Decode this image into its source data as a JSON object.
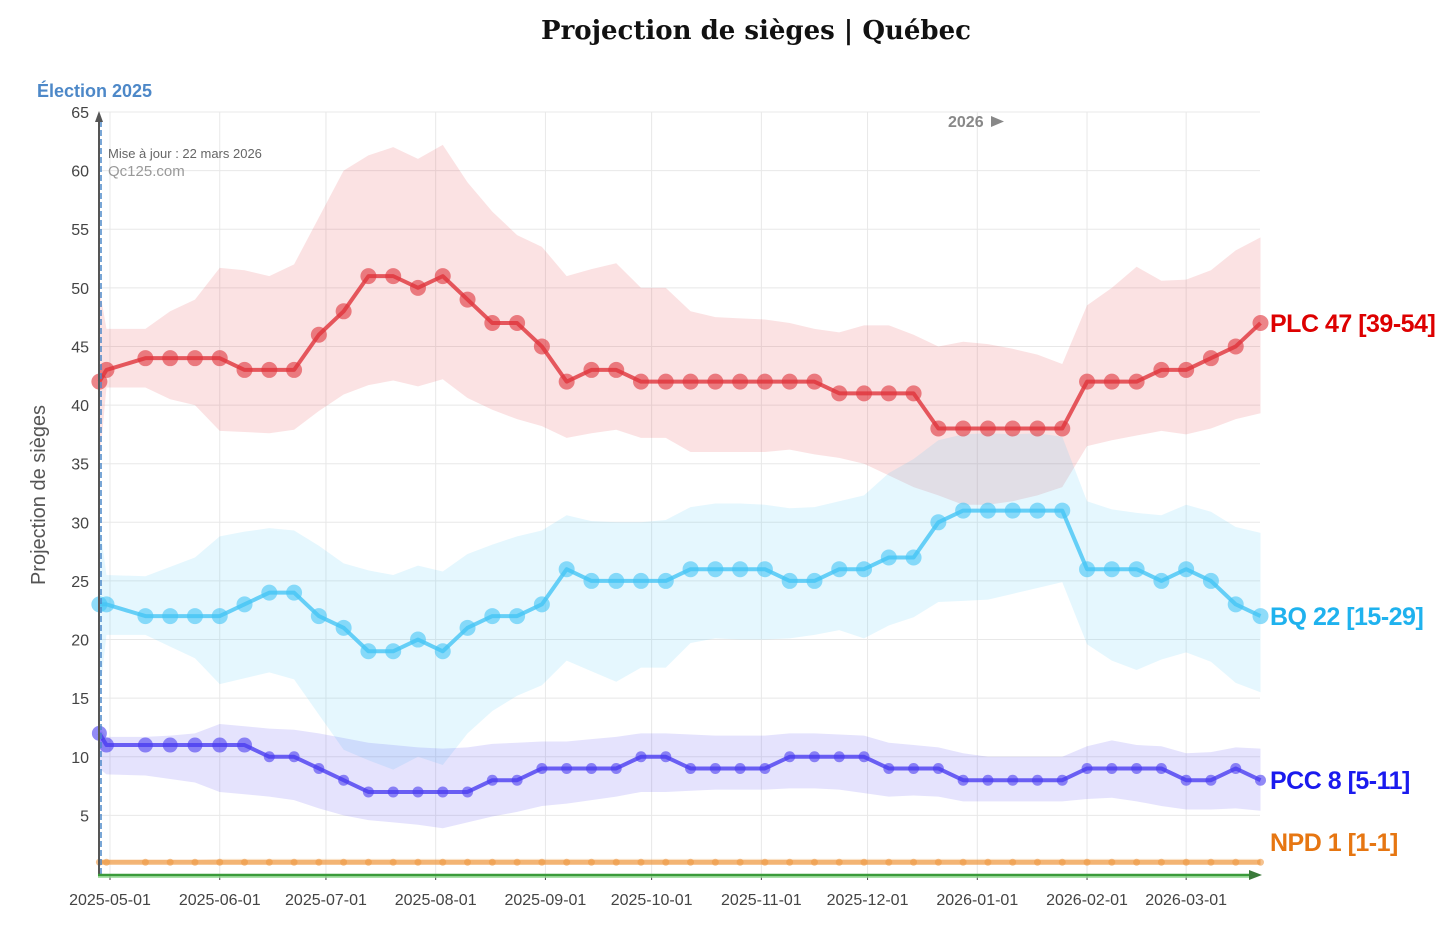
{
  "chart_data": {
    "type": "line",
    "title": "Projection de sièges | Québec",
    "ylabel": "Projection de sièges",
    "xlabel": "",
    "ylim": [
      0,
      65
    ],
    "yticks": [
      5,
      10,
      15,
      20,
      25,
      30,
      35,
      40,
      45,
      50,
      55,
      60,
      65
    ],
    "grid": true,
    "election_label": "Élection 2025",
    "updated_label": "Mise à jour : 22 mars 2026",
    "source_label": "Qc125.com",
    "year_marker": "2026",
    "xtick_labels": [
      "2025-05-01",
      "2025-06-01",
      "2025-07-01",
      "2025-08-01",
      "2025-09-01",
      "2025-10-01",
      "2025-11-01",
      "2025-12-01",
      "2026-01-01",
      "2026-02-01",
      "2026-03-01"
    ],
    "x": [
      "2025-04-28",
      "2025-04-30",
      "2025-05-11",
      "2025-05-18",
      "2025-05-25",
      "2025-06-01",
      "2025-06-08",
      "2025-06-15",
      "2025-06-22",
      "2025-06-29",
      "2025-07-06",
      "2025-07-13",
      "2025-07-20",
      "2025-07-27",
      "2025-08-03",
      "2025-08-10",
      "2025-08-17",
      "2025-08-24",
      "2025-08-31",
      "2025-09-07",
      "2025-09-14",
      "2025-09-21",
      "2025-09-28",
      "2025-10-05",
      "2025-10-12",
      "2025-10-19",
      "2025-10-26",
      "2025-11-02",
      "2025-11-09",
      "2025-11-16",
      "2025-11-23",
      "2025-11-30",
      "2025-12-07",
      "2025-12-14",
      "2025-12-21",
      "2025-12-28",
      "2026-01-04",
      "2026-01-11",
      "2026-01-18",
      "2026-01-25",
      "2026-02-01",
      "2026-02-08",
      "2026-02-15",
      "2026-02-22",
      "2026-03-01",
      "2026-03-08",
      "2026-03-15",
      "2026-03-22"
    ],
    "series": [
      {
        "name": "PLC",
        "label": "PLC 47 [39-54]",
        "color": "#e0333a",
        "label_color": "#dd0000",
        "values": [
          42,
          43,
          44,
          44,
          44,
          44,
          43,
          43,
          43,
          46,
          48,
          51,
          51,
          50,
          51,
          49,
          47,
          47,
          45,
          42,
          43,
          43,
          42,
          42,
          42,
          42,
          42,
          42,
          42,
          42,
          41,
          41,
          41,
          41,
          38,
          38,
          38,
          38,
          38,
          38,
          42,
          42,
          42,
          43,
          43,
          44,
          45,
          47
        ],
        "upper": [
          50,
          46.5,
          46.5,
          48,
          49,
          51.7,
          51.5,
          51,
          52,
          56,
          60,
          61.3,
          62,
          61,
          62.2,
          59,
          56.5,
          54.5,
          53.5,
          51,
          51.6,
          52.1,
          50,
          50,
          48,
          47.5,
          47.4,
          47.3,
          47,
          46.5,
          46.2,
          46.8,
          46.8,
          46,
          45,
          45.4,
          45.2,
          44.8,
          44.3,
          43.5,
          48.5,
          50,
          51.8,
          50.6,
          50.7,
          51.5,
          53.2,
          54.3
        ],
        "lower": [
          35,
          41.5,
          41.5,
          40.5,
          40,
          37.8,
          37.7,
          37.6,
          37.9,
          39.5,
          40.9,
          41.7,
          42.1,
          41.6,
          42.2,
          40.6,
          39.6,
          38.8,
          38.2,
          37.2,
          37.6,
          37.9,
          37.2,
          37.2,
          36,
          36,
          36,
          36,
          36.2,
          35.8,
          35.5,
          35,
          34,
          33,
          32.3,
          31.5,
          31.5,
          31.8,
          32.3,
          33,
          36.5,
          37,
          37.4,
          37.8,
          37.5,
          38,
          38.8,
          39.3
        ]
      },
      {
        "name": "BQ",
        "label": "BQ 22 [15-29]",
        "color": "#45c4f5",
        "label_color": "#1fb2ee",
        "values": [
          23,
          23,
          22,
          22,
          22,
          22,
          23,
          24,
          24,
          22,
          21,
          19,
          19,
          20,
          19,
          21,
          22,
          22,
          23,
          26,
          25,
          25,
          25,
          25,
          26,
          26,
          26,
          26,
          25,
          25,
          26,
          26,
          27,
          27,
          30,
          31,
          31,
          31,
          31,
          31,
          26,
          26,
          26,
          25,
          26,
          25,
          23,
          22
        ],
        "upper": [
          30,
          25.5,
          25.4,
          26.2,
          27,
          28.8,
          29.2,
          29.5,
          29.3,
          28,
          26.5,
          25.9,
          25.5,
          26.3,
          25.8,
          27.3,
          28.1,
          28.8,
          29.3,
          30.6,
          30.1,
          30,
          30,
          30.2,
          31.3,
          31.6,
          31.6,
          31.5,
          31.2,
          31.3,
          31.8,
          32.3,
          34.2,
          35.4,
          37,
          37.5,
          37.6,
          37.5,
          37.6,
          37.3,
          31.8,
          31.1,
          30.8,
          30.6,
          31.5,
          30.9,
          29.6,
          29.1
        ],
        "lower": [
          15,
          20.4,
          20.4,
          19.4,
          18.4,
          16.2,
          16.7,
          17.2,
          16.6,
          13.6,
          10.6,
          9.7,
          8.9,
          10,
          9.3,
          12,
          13.9,
          15.2,
          16.1,
          18.2,
          17.3,
          16.4,
          17.6,
          17.6,
          19.7,
          20.1,
          20,
          20,
          20.1,
          20.4,
          20.8,
          20.1,
          21.2,
          21.9,
          23.2,
          23.3,
          23.4,
          23.9,
          24.4,
          24.9,
          19.6,
          18.2,
          17.4,
          18.3,
          18.9,
          18.1,
          16.3,
          15.5
        ]
      },
      {
        "name": "PCC",
        "label": "PCC 8 [5-11]",
        "color": "#4a3cf0",
        "label_color": "#1a1aee",
        "values": [
          12,
          11,
          11,
          11,
          11,
          11,
          11,
          10,
          10,
          9,
          8,
          7,
          7,
          7,
          7,
          7,
          8,
          8,
          9,
          9,
          9,
          9,
          10,
          10,
          9,
          9,
          9,
          9,
          10,
          10,
          10,
          10,
          9,
          9,
          9,
          8,
          8,
          8,
          8,
          8,
          9,
          9,
          9,
          9,
          8,
          8,
          9,
          8
        ],
        "upper": [
          12.5,
          11.7,
          11.7,
          11.8,
          12,
          12.8,
          12.6,
          12.4,
          12.3,
          12,
          11.6,
          11.2,
          11,
          10.8,
          10.7,
          10.8,
          11.1,
          11.2,
          11.3,
          11.3,
          11.5,
          11.7,
          12,
          12,
          11.9,
          11.8,
          11.8,
          11.8,
          12,
          12,
          11.9,
          11.8,
          11.2,
          11,
          10.8,
          10.3,
          10,
          10,
          10,
          10,
          10.9,
          11.4,
          11,
          10.9,
          10.3,
          10.4,
          10.8,
          10.7
        ],
        "lower": [
          9,
          8.5,
          8.4,
          8.1,
          7.8,
          7,
          6.8,
          6.6,
          6.3,
          5.6,
          5,
          4.6,
          4.4,
          4.2,
          3.9,
          4.4,
          4.9,
          5.3,
          5.8,
          6,
          6.3,
          6.6,
          7,
          7,
          7.1,
          7.2,
          7.2,
          7.2,
          7.3,
          7.3,
          7.2,
          6.9,
          6.6,
          6.7,
          6.6,
          6.2,
          6.2,
          6.2,
          6.2,
          6.2,
          6.4,
          6.5,
          6.2,
          5.8,
          5.5,
          5.5,
          5.6,
          5.4
        ]
      },
      {
        "name": "NPD",
        "label": "NPD 1 [1-1]",
        "color": "#ee9a45",
        "label_color": "#e67612",
        "values": [
          1,
          1,
          1,
          1,
          1,
          1,
          1,
          1,
          1,
          1,
          1,
          1,
          1,
          1,
          1,
          1,
          1,
          1,
          1,
          1,
          1,
          1,
          1,
          1,
          1,
          1,
          1,
          1,
          1,
          1,
          1,
          1,
          1,
          1,
          1,
          1,
          1,
          1,
          1,
          1,
          1,
          1,
          1,
          1,
          1,
          1,
          1,
          1
        ],
        "upper": [
          1.2,
          1.2,
          1.2,
          1.2,
          1.2,
          1.3,
          1.3,
          1.3,
          1.3,
          1.3,
          1.3,
          1.3,
          1.3,
          1.3,
          1.3,
          1.3,
          1.3,
          1.3,
          1.3,
          1.3,
          1.3,
          1.3,
          1.3,
          1.3,
          1.3,
          1.3,
          1.3,
          1.3,
          1.3,
          1.3,
          1.3,
          1.3,
          1.3,
          1.3,
          1.3,
          1.3,
          1.3,
          1.3,
          1.3,
          1.3,
          1.3,
          1.3,
          1.3,
          1.3,
          1.3,
          1.3,
          1.3,
          1.3
        ],
        "lower": [
          0.9,
          0.9,
          0.9,
          0.9,
          0.9,
          0.8,
          0.8,
          0.8,
          0.8,
          0.8,
          0.8,
          0.8,
          0.8,
          0.8,
          0.8,
          0.8,
          0.8,
          0.8,
          0.8,
          0.8,
          0.8,
          0.8,
          0.8,
          0.8,
          0.8,
          0.8,
          0.8,
          0.8,
          0.8,
          0.8,
          0.8,
          0.8,
          0.8,
          0.8,
          0.8,
          0.8,
          0.8,
          0.8,
          0.8,
          0.8,
          0.8,
          0.8,
          0.8,
          0.8,
          0.8,
          0.8,
          0.8,
          0.8
        ]
      }
    ]
  }
}
